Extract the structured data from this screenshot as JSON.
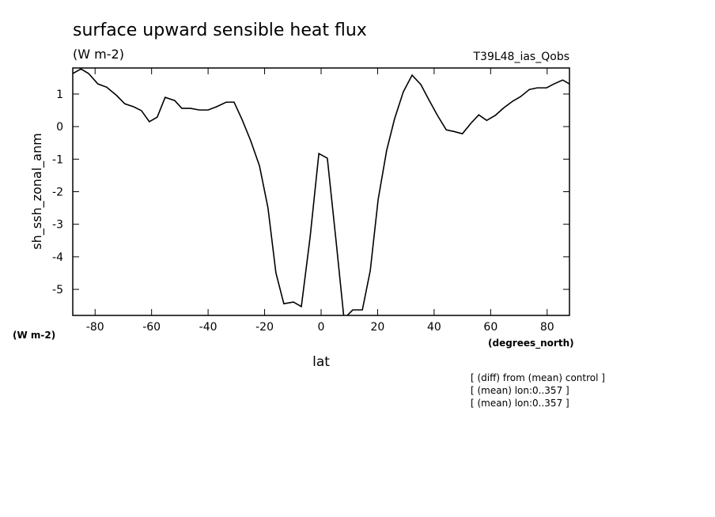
{
  "chart_data": {
    "type": "line",
    "title": "surface upward sensible heat flux",
    "units": "(W m-2)",
    "run_label": "T39L48_ias_Qobs",
    "y_label": "sh_ssh_zonal_anm",
    "y_units": "(W m-2)",
    "x_units": "(degrees_north)",
    "x_label": "lat",
    "notes": [
      "[ (diff) from (mean) control ]",
      "[ (mean) lon:0..357 ]",
      "[ (mean) lon:0..357 ]"
    ],
    "x": [
      -87.9,
      -85,
      -82.3,
      -79,
      -75.9,
      -72.3,
      -69.5,
      -66.4,
      -63.6,
      -60.8,
      -58,
      -55.2,
      -51.8,
      -49.3,
      -46.2,
      -43.1,
      -40,
      -37,
      -33.6,
      -30.8,
      -28,
      -24.9,
      -21.8,
      -18.8,
      -16,
      -13.2,
      -9.8,
      -7,
      -3.9,
      -0.8,
      2.2,
      5.3,
      8.1,
      11.2,
      14.6,
      17.4,
      20.2,
      23.2,
      26,
      29.1,
      32.2,
      35.3,
      38.1,
      41.2,
      44.3,
      47,
      50,
      53,
      55.8,
      58.6,
      61.6,
      64.7,
      67.8,
      70.6,
      73.7,
      76.5,
      79.8,
      82.4,
      85.5,
      88.3
    ],
    "series": [
      {
        "name": "sh_ssh_zonal_anm",
        "color": "#000000",
        "values": [
          1.63,
          1.77,
          1.63,
          1.31,
          1.21,
          0.95,
          0.7,
          0.61,
          0.49,
          0.15,
          0.29,
          0.9,
          0.8,
          0.56,
          0.56,
          0.51,
          0.51,
          0.61,
          0.75,
          0.75,
          0.22,
          -0.44,
          -1.21,
          -2.5,
          -4.49,
          -5.44,
          -5.39,
          -5.53,
          -3.4,
          -0.83,
          -0.97,
          -3.52,
          -5.9,
          -5.63,
          -5.63,
          -4.42,
          -2.23,
          -0.73,
          0.24,
          1.07,
          1.58,
          1.29,
          0.83,
          0.34,
          -0.1,
          -0.15,
          -0.22,
          0.1,
          0.36,
          0.19,
          0.34,
          0.58,
          0.78,
          0.92,
          1.14,
          1.19,
          1.19,
          1.31,
          1.43,
          1.29
        ]
      }
    ],
    "xlim": [
      -87.9,
      87.9
    ],
    "ylim": [
      -5.8,
      1.8
    ],
    "xticks": [
      -80,
      -60,
      -40,
      -20,
      0,
      20,
      40,
      60,
      80
    ],
    "yticks": [
      -5,
      -4,
      -3,
      -2,
      -1,
      0,
      1
    ]
  }
}
